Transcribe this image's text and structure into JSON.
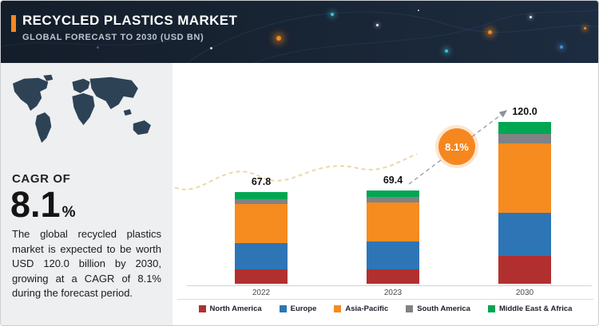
{
  "header": {
    "title": "RECYCLED PLASTICS MARKET",
    "subtitle": "GLOBAL FORECAST TO 2030 (USD BN)",
    "accent_color": "#f6871f"
  },
  "sidebar": {
    "cagr_label": "CAGR OF",
    "cagr_value": "8.1",
    "cagr_unit": "%",
    "description": "The global recycled plastics market is expected to be worth USD 120.0 billion by 2030, growing at a CAGR of 8.1% during the forecast period."
  },
  "chart": {
    "cagr_badge": "8.1%"
  },
  "chart_data": {
    "type": "bar",
    "stacked": true,
    "title": "Recycled Plastics Market, Global Forecast to 2030 (USD BN)",
    "categories": [
      "2022",
      "2023",
      "2030"
    ],
    "totals": [
      67.8,
      69.4,
      120.0
    ],
    "series": [
      {
        "name": "North America",
        "color": "#b1302f",
        "values": [
          10.5,
          10.8,
          20.5
        ]
      },
      {
        "name": "Europe",
        "color": "#2e75b6",
        "values": [
          20.0,
          20.4,
          32.5
        ]
      },
      {
        "name": "Asia-Pacific",
        "color": "#f68b1f",
        "values": [
          28.5,
          29.2,
          51.0
        ]
      },
      {
        "name": "South America",
        "color": "#808285",
        "values": [
          4.0,
          4.1,
          7.5
        ]
      },
      {
        "name": "Middle East & Africa",
        "color": "#00a651",
        "values": [
          4.8,
          4.9,
          8.5
        ]
      }
    ],
    "ylim": [
      0,
      130
    ],
    "grid": false,
    "legend_position": "bottom",
    "annotations": [
      "8.1% CAGR arrow from 2023 toward 2030"
    ]
  }
}
